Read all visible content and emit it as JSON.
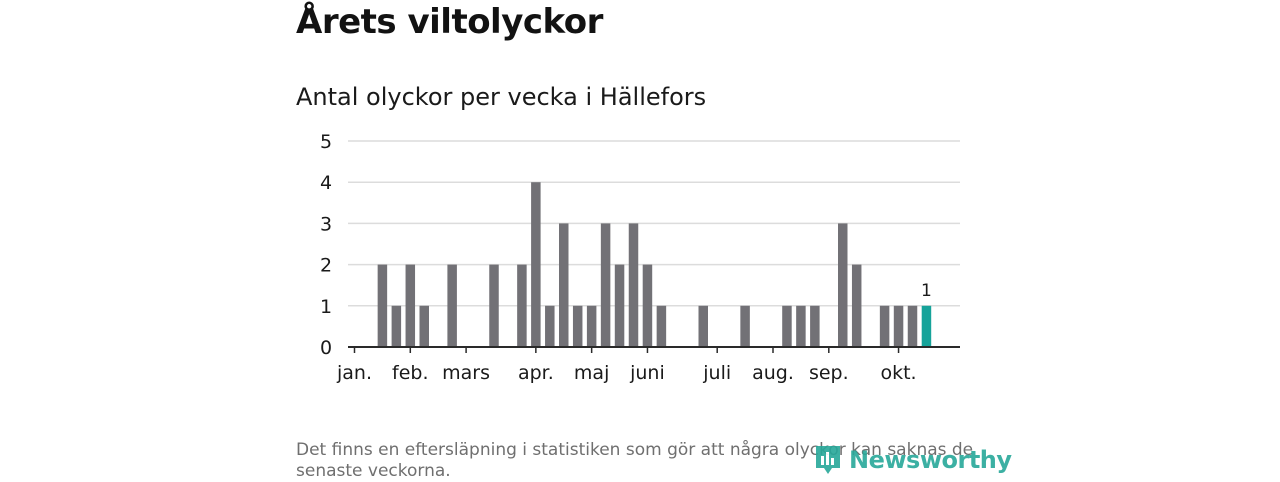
{
  "header": {
    "title": "Årets viltolyckor",
    "subtitle": "Antal olyckor per vecka i Hällefors"
  },
  "footnote": "Det finns en eftersläpning i statistiken som gör att några olyckor kan saknas de senaste veckorna.",
  "logo": {
    "text": "Newsworthy",
    "icon": "newsworthy-logo-icon",
    "color": "#28a89a"
  },
  "colors": {
    "bar": "#727176",
    "highlight": "#16a39a",
    "grid": "#dcdcdc",
    "axis": "#2a2a2a"
  },
  "chart_data": {
    "type": "bar",
    "title": "Antal olyckor per vecka i Hällefors",
    "xlabel": "",
    "ylabel": "",
    "ylim": [
      0,
      5
    ],
    "y_ticks": [
      0,
      1,
      2,
      3,
      4,
      5
    ],
    "grid": true,
    "x_week_range": [
      1,
      43
    ],
    "month_ticks": [
      {
        "label": "jan.",
        "week": 1
      },
      {
        "label": "feb.",
        "week": 5
      },
      {
        "label": "mars",
        "week": 9
      },
      {
        "label": "apr.",
        "week": 14
      },
      {
        "label": "maj",
        "week": 18
      },
      {
        "label": "juni",
        "week": 22
      },
      {
        "label": "juli",
        "week": 27
      },
      {
        "label": "aug.",
        "week": 31
      },
      {
        "label": "sep.",
        "week": 35
      },
      {
        "label": "okt.",
        "week": 40
      }
    ],
    "weeks": [
      3,
      4,
      5,
      6,
      8,
      11,
      13,
      14,
      15,
      16,
      17,
      18,
      19,
      20,
      21,
      22,
      23,
      26,
      29,
      32,
      33,
      34,
      36,
      37,
      39,
      40,
      41,
      42
    ],
    "values": [
      2,
      1,
      2,
      1,
      2,
      2,
      2,
      4,
      1,
      3,
      1,
      1,
      3,
      2,
      3,
      2,
      1,
      1,
      1,
      1,
      1,
      1,
      3,
      2,
      1,
      1,
      1,
      1
    ],
    "highlight_week": 42,
    "highlight_label": "1"
  }
}
